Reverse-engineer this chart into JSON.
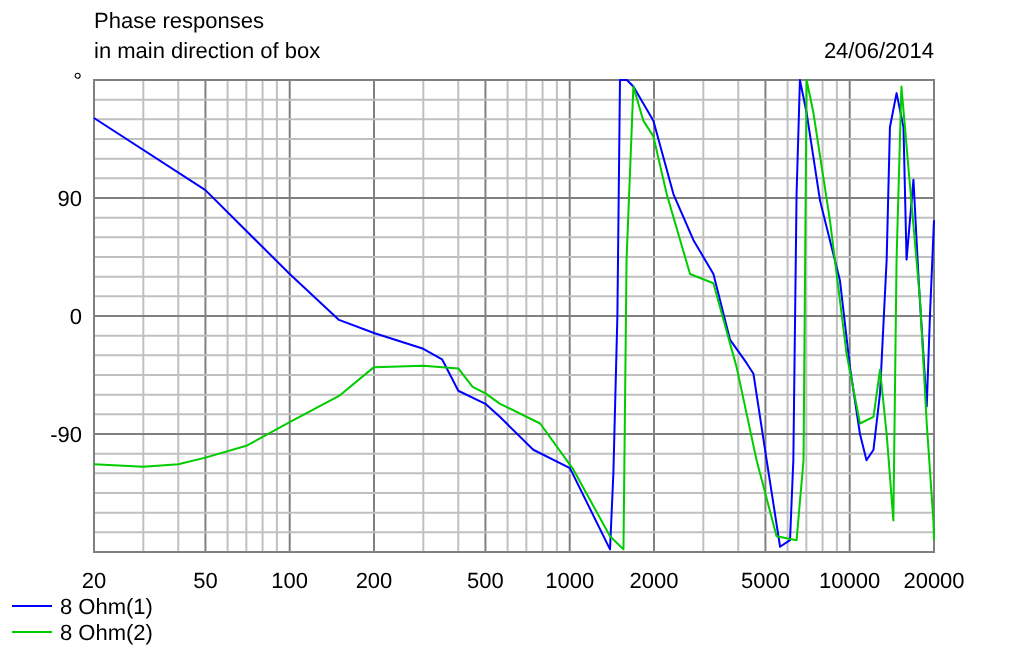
{
  "chart_data": {
    "type": "line",
    "title": "Phase responses",
    "subtitle": "in main direction of box",
    "annotations": [
      "24/06/2014"
    ],
    "log": "x",
    "grid": true,
    "legend": "bottom left",
    "line_style": "solid",
    "marker": "none",
    "xlim": [
      20,
      20000
    ],
    "ylim": [
      -180,
      180
    ],
    "xticks": [
      20,
      {
        "value": 30,
        "label": null
      },
      {
        "value": 40,
        "label": null
      },
      50,
      {
        "value": 60,
        "label": null
      },
      {
        "value": 70,
        "label": null
      },
      {
        "value": 80,
        "label": null
      },
      {
        "value": 90,
        "label": null
      },
      100,
      200,
      {
        "value": 300,
        "label": null
      },
      {
        "value": 400,
        "label": null
      },
      500,
      {
        "value": 600,
        "label": null
      },
      {
        "value": 700,
        "label": null
      },
      {
        "value": 800,
        "label": null
      },
      {
        "value": 900,
        "label": null
      },
      1000,
      2000,
      {
        "value": 3000,
        "label": null
      },
      {
        "value": 4000,
        "label": null
      },
      5000,
      {
        "value": 6000,
        "label": null
      },
      {
        "value": 7000,
        "label": null
      },
      {
        "value": 8000,
        "label": null
      },
      {
        "value": 9000,
        "label": null
      },
      10000,
      20000
    ],
    "yticks": [
      {
        "value": -180,
        "label": null
      },
      {
        "value": -165,
        "label": null
      },
      {
        "value": -150,
        "label": null
      },
      {
        "value": -135,
        "label": null
      },
      {
        "value": -120,
        "label": null
      },
      {
        "value": -105,
        "label": null
      },
      -90,
      {
        "value": -75,
        "label": null
      },
      {
        "value": -60,
        "label": null
      },
      {
        "value": -45,
        "label": null
      },
      {
        "value": -30,
        "label": null
      },
      {
        "value": -15,
        "label": null
      },
      0,
      {
        "value": 15,
        "label": null
      },
      {
        "value": 30,
        "label": null
      },
      {
        "value": 45,
        "label": null
      },
      {
        "value": 60,
        "label": null
      },
      {
        "value": 75,
        "label": null
      },
      90,
      {
        "value": 105,
        "label": null
      },
      {
        "value": 120,
        "label": null
      },
      {
        "value": 135,
        "label": null
      },
      {
        "value": 150,
        "label": null
      },
      {
        "value": 165,
        "label": null
      },
      {
        "value": 180,
        "label": "°"
      }
    ],
    "series": [
      {
        "name": "8 Ohm(1)",
        "color": "#0000ff",
        "x": [
          20,
          50,
          100,
          150,
          200,
          300,
          350,
          400,
          500,
          564,
          741,
          1002,
          1393,
          1432,
          1480,
          1512,
          1600,
          1688,
          1990,
          2346,
          2764,
          3260,
          3736,
          4285,
          4530,
          5050,
          5640,
          6120,
          6290,
          6460,
          6640,
          7016,
          7834,
          9230,
          10020,
          10880,
          11480,
          12160,
          12830,
          13550,
          13920,
          14700,
          15560,
          15960,
          16890,
          17630,
          18840,
          19360,
          20000
        ],
        "values": [
          151,
          96,
          32,
          -3,
          -13,
          -25,
          -33,
          -57,
          -67,
          -77,
          -102,
          -116,
          -178,
          -120,
          0,
          180,
          180,
          175,
          149,
          93,
          58,
          32,
          -18,
          -36,
          -44,
          -110,
          -176,
          -171,
          -110,
          93,
          180,
          155,
          88,
          27,
          -39,
          -90,
          -110,
          -102,
          -59,
          43,
          144,
          170,
          144,
          43,
          104,
          27,
          -69,
          2,
          73
        ]
      },
      {
        "name": "8 Ohm(2)",
        "color": "#00cc00",
        "x": [
          20,
          30,
          40,
          50,
          70,
          100,
          150,
          200,
          300,
          400,
          450,
          500,
          564,
          784,
          1030,
          1393,
          1556,
          1596,
          1688,
          1832,
          1990,
          2220,
          2690,
          3260,
          3945,
          4650,
          5480,
          6460,
          6840,
          7016,
          7420,
          8500,
          9750,
          10880,
          12160,
          12830,
          13550,
          14320,
          14700,
          15300,
          16420,
          17830,
          18840,
          19900,
          20000
        ],
        "values": [
          -113,
          -115,
          -113,
          -108,
          -99,
          -81,
          -61,
          -39,
          -38,
          -40,
          -54,
          -59,
          -67,
          -82,
          -117,
          -168,
          -178,
          43,
          175,
          149,
          137,
          93,
          32,
          25,
          -39,
          -110,
          -168,
          -171,
          -110,
          180,
          155,
          73,
          -29,
          -82,
          -77,
          -41,
          -90,
          -156,
          43,
          175,
          99,
          12,
          -82,
          -156,
          -171
        ]
      }
    ]
  }
}
